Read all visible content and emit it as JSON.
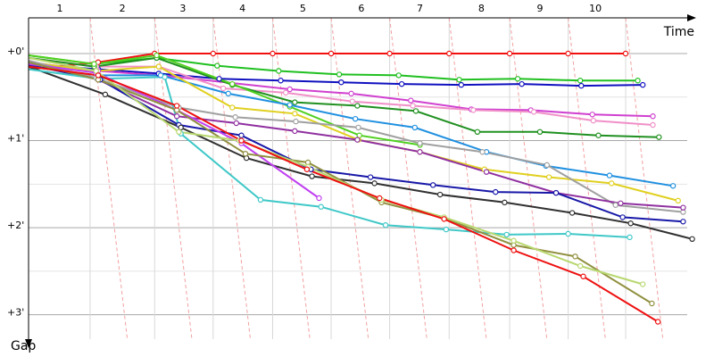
{
  "chart_data": {
    "type": "line",
    "x_label": "Time",
    "y_label": "Gap",
    "xlim": [
      0,
      66.5
    ],
    "ylim": [
      -0.41,
      3.28
    ],
    "xticks": [
      {
        "value": 3.1,
        "label": "1"
      },
      {
        "value": 9.3,
        "label": "2"
      },
      {
        "value": 15.3,
        "label": "3"
      },
      {
        "value": 21.2,
        "label": "4"
      },
      {
        "value": 27.2,
        "label": "5"
      },
      {
        "value": 33.0,
        "label": "6"
      },
      {
        "value": 38.8,
        "label": "7"
      },
      {
        "value": 44.9,
        "label": "8"
      },
      {
        "value": 50.7,
        "label": "9"
      },
      {
        "value": 56.2,
        "label": "10"
      }
    ],
    "lap_lines": [
      6.1,
      12.5,
      18.3,
      24.2,
      30.0,
      35.8,
      41.7,
      47.7,
      53.5,
      59.2
    ],
    "yticks": [
      {
        "value": 0,
        "label": "+0'"
      },
      {
        "value": 1,
        "label": "+1'"
      },
      {
        "value": 2,
        "label": "+2'"
      },
      {
        "value": 3,
        "label": "+3'"
      }
    ],
    "yminor": [
      0.5,
      1.5,
      2.5
    ],
    "series": [
      {
        "color": "#f01010",
        "x": [
          0,
          6.9,
          12.5,
          18.3,
          24.2,
          30.0,
          35.8,
          41.7,
          47.7,
          53.5,
          59.2
        ],
        "values": [
          0.18,
          0.1,
          0,
          0,
          0,
          0,
          0,
          0,
          0,
          0,
          0
        ]
      },
      {
        "color": "#20c020",
        "x": [
          0,
          6.5,
          12.7,
          18.7,
          24.8,
          30.8,
          36.7,
          42.7,
          48.5,
          54.7,
          60.4
        ],
        "values": [
          0.02,
          0.12,
          0.05,
          0.14,
          0.2,
          0.24,
          0.25,
          0.3,
          0.29,
          0.31,
          0.31
        ]
      },
      {
        "color": "#1010c0",
        "x": [
          0,
          6.9,
          12.9,
          18.9,
          25.0,
          31.0,
          37.0,
          42.9,
          48.9,
          54.8,
          60.9
        ],
        "values": [
          0.12,
          0.18,
          0.23,
          0.29,
          0.31,
          0.33,
          0.35,
          0.36,
          0.35,
          0.37,
          0.36
        ]
      },
      {
        "color": "#d040d0",
        "x": [
          0,
          6.9,
          13.1,
          25.9,
          32.0,
          37.9,
          43.9,
          49.8,
          55.9,
          61.9
        ],
        "values": [
          0.1,
          0.2,
          0.25,
          0.41,
          0.46,
          0.54,
          0.64,
          0.65,
          0.7,
          0.72
        ]
      },
      {
        "color": "#f090c8",
        "x": [
          0,
          6.7,
          12.9,
          19.3,
          25.5,
          32.1,
          38.1,
          44.1,
          50.1,
          56.0,
          61.9
        ],
        "values": [
          0.05,
          0.15,
          0.15,
          0.4,
          0.45,
          0.55,
          0.6,
          0.65,
          0.67,
          0.77,
          0.82
        ]
      },
      {
        "color": "#209020",
        "x": [
          0,
          6.5,
          12.7,
          20.2,
          26.4,
          32.6,
          38.4,
          44.5,
          50.7,
          56.5,
          62.5
        ],
        "values": [
          0.05,
          0.15,
          0.05,
          0.36,
          0.56,
          0.6,
          0.66,
          0.9,
          0.9,
          0.94,
          0.96
        ]
      },
      {
        "color": "#50d020",
        "x": [
          0,
          6.5,
          12.7,
          20.2,
          25.9,
          32.8,
          38.8
        ],
        "values": [
          0.02,
          0.12,
          0.02,
          0.35,
          0.61,
          0.94,
          1.05
        ]
      },
      {
        "color": "#2090e0",
        "x": [
          0,
          6.9,
          13.1,
          19.8,
          25.9,
          32.4,
          38.3,
          45.4,
          51.3,
          57.6,
          63.9
        ],
        "values": [
          0.15,
          0.25,
          0.25,
          0.46,
          0.59,
          0.75,
          0.85,
          1.13,
          1.29,
          1.4,
          1.52
        ]
      },
      {
        "color": "#e0d020",
        "x": [
          0,
          6.7,
          12.9,
          20.2,
          26.4,
          32.7,
          38.8,
          45.2,
          51.6,
          57.8,
          64.4
        ],
        "values": [
          0.1,
          0.2,
          0.15,
          0.62,
          0.69,
          0.99,
          1.13,
          1.33,
          1.42,
          1.49,
          1.69
        ]
      },
      {
        "color": "#a0a0a0",
        "x": [
          0,
          6.7,
          14.9,
          20.5,
          26.5,
          32.7,
          38.8,
          45.0,
          51.4,
          58.2,
          64.9
        ],
        "values": [
          0.08,
          0.28,
          0.62,
          0.73,
          0.78,
          0.85,
          1.03,
          1.13,
          1.28,
          1.74,
          1.82
        ]
      },
      {
        "color": "#9030a0",
        "x": [
          0,
          6.9,
          14.7,
          20.6,
          26.4,
          32.6,
          38.8,
          45.4,
          52.3,
          58.7,
          64.9
        ],
        "values": [
          0.1,
          0.3,
          0.72,
          0.8,
          0.89,
          0.99,
          1.13,
          1.36,
          1.6,
          1.72,
          1.77
        ]
      },
      {
        "color": "#1818a8",
        "x": [
          0,
          7.1,
          14.9,
          21.1,
          28.0,
          33.9,
          40.1,
          46.3,
          52.3,
          58.9,
          64.9
        ],
        "values": [
          0.13,
          0.3,
          0.82,
          0.94,
          1.33,
          1.42,
          1.51,
          1.59,
          1.6,
          1.88,
          1.93
        ]
      },
      {
        "color": "#303030",
        "x": [
          0,
          7.6,
          15.1,
          21.6,
          28.1,
          34.3,
          40.8,
          47.2,
          53.9,
          59.7,
          65.8
        ],
        "values": [
          0.15,
          0.47,
          0.85,
          1.2,
          1.41,
          1.49,
          1.62,
          1.71,
          1.83,
          1.95,
          2.13
        ]
      },
      {
        "color": "#40c8c8",
        "x": [
          0,
          6.9,
          13.5,
          15.1,
          23.0,
          29.0,
          35.4,
          41.4,
          47.4,
          53.5,
          59.6
        ],
        "values": [
          0.18,
          0.29,
          0.27,
          0.92,
          1.68,
          1.76,
          1.97,
          2.02,
          2.08,
          2.07,
          2.11
        ]
      },
      {
        "color": "#c040f0",
        "x": [
          0,
          6.7,
          14.7,
          21.1,
          28.8
        ],
        "values": [
          0.12,
          0.22,
          0.65,
          1.03,
          1.66
        ]
      },
      {
        "color": "#909040",
        "x": [
          0,
          6.9,
          14.7,
          21.5,
          27.7,
          35.0,
          41.2,
          48.1,
          54.2,
          61.8
        ],
        "values": [
          0.1,
          0.3,
          0.65,
          1.15,
          1.25,
          1.71,
          1.89,
          2.2,
          2.33,
          2.87
        ]
      },
      {
        "color": "#b8d870",
        "x": [
          0,
          6.7,
          14.9,
          20.9,
          27.7,
          35.0,
          41.2,
          48.1,
          54.7,
          60.9
        ],
        "values": [
          0.05,
          0.2,
          0.9,
          1.0,
          1.3,
          1.68,
          1.88,
          2.15,
          2.44,
          2.65
        ]
      },
      {
        "color": "#ee1010",
        "x": [
          0,
          6.9,
          14.7,
          21.1,
          27.6,
          34.8,
          41.2,
          48.1,
          55.0,
          62.4
        ],
        "values": [
          0.15,
          0.25,
          0.6,
          1.0,
          1.33,
          1.66,
          1.9,
          2.26,
          2.56,
          3.08
        ]
      }
    ]
  }
}
